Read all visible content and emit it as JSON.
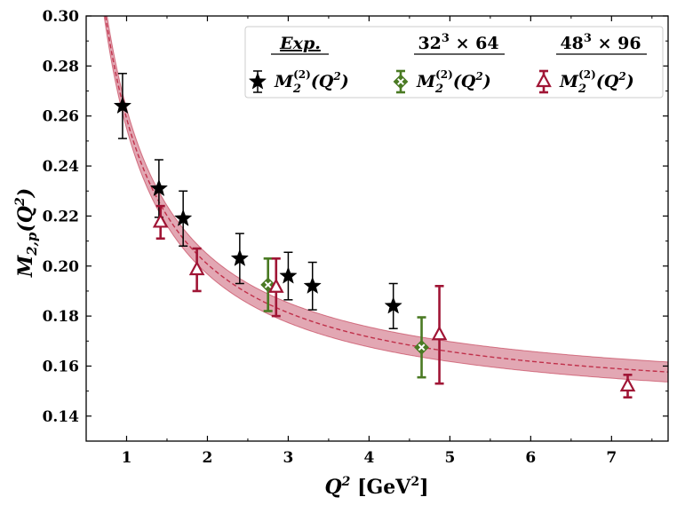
{
  "chart_data": {
    "type": "scatter",
    "xlabel_main": "Q",
    "xlabel_sup": "2",
    "xlabel_unit": "[GeV",
    "xlabel_unit_sup": "2",
    "xlabel_unit_close": "]",
    "ylabel_main": "M",
    "ylabel_sub": "2,p",
    "ylabel_arg": "(Q",
    "ylabel_arg_sup": "2",
    "ylabel_arg_close": ")",
    "xlim": [
      0.5,
      7.7
    ],
    "ylim": [
      0.13,
      0.3
    ],
    "xticks": [
      1,
      2,
      3,
      4,
      5,
      6,
      7
    ],
    "yticks": [
      0.14,
      0.16,
      0.18,
      0.2,
      0.22,
      0.24,
      0.26,
      0.28,
      0.3
    ],
    "ytick_labels": [
      "0.14",
      "0.16",
      "0.18",
      "0.20",
      "0.22",
      "0.24",
      "0.26",
      "0.28",
      "0.30"
    ],
    "grid": false,
    "legend": {
      "placement": "top-right",
      "columns": [
        {
          "header": "Exp.",
          "header_style": "italic",
          "label": "M",
          "sub": "2",
          "sup": "(2)",
          "arg": "(Q",
          "arg_sup": "2",
          "close": ")",
          "marker": "star",
          "color": "#000000"
        },
        {
          "header": "32",
          "header_sup": "3",
          "header_rest": " × 64",
          "label": "M",
          "sub": "2",
          "sup": "(2)",
          "arg": "(Q",
          "arg_sup": "2",
          "close": ")",
          "marker": "x-diamond",
          "color": "#4a7a23"
        },
        {
          "header": "48",
          "header_sup": "3",
          "header_rest": " × 96",
          "label": "M",
          "sub": "2",
          "sup": "(2)",
          "arg": "(Q",
          "arg_sup": "2",
          "close": ")",
          "marker": "triangle",
          "color": "#a01535"
        }
      ]
    },
    "series": [
      {
        "marker": "star",
        "color": "#000000",
        "x": [
          0.95,
          1.4,
          1.7,
          2.4,
          3.0,
          3.3,
          4.3
        ],
        "y": [
          0.264,
          0.231,
          0.219,
          0.203,
          0.196,
          0.192,
          0.184
        ],
        "yerr": [
          0.013,
          0.0115,
          0.011,
          0.01,
          0.0095,
          0.0095,
          0.009
        ]
      },
      {
        "marker": "x-diamond",
        "color": "#4a7a23",
        "x": [
          2.75,
          4.65
        ],
        "y": [
          0.1925,
          0.1675
        ],
        "yerr": [
          0.0105,
          0.012
        ]
      },
      {
        "marker": "triangle",
        "color": "#a01535",
        "x": [
          1.42,
          1.87,
          2.85,
          4.87,
          7.2
        ],
        "y": [
          0.2175,
          0.1985,
          0.1915,
          0.1725,
          0.152
        ],
        "yerr": [
          0.0065,
          0.0085,
          0.0115,
          0.0195,
          0.0045
        ]
      }
    ],
    "fit": {
      "color": "#c0304a",
      "band_color": "#d88a9a",
      "model": "a + b/x",
      "a": 0.1425,
      "b": 0.1165,
      "halfwidth": 0.004
    }
  }
}
